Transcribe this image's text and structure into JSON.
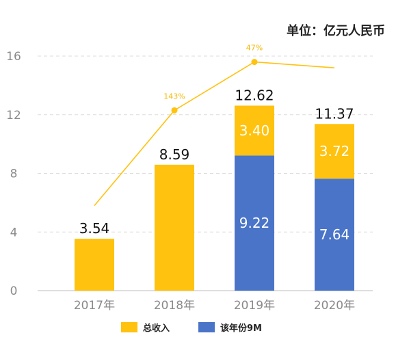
{
  "chart_data": {
    "type": "bar",
    "unit_label": "单位：亿元人民币",
    "categories": [
      "2017年",
      "2018年",
      "2019年",
      "2020年"
    ],
    "ylim": [
      0,
      16
    ],
    "yticks": [
      "0",
      "4",
      "8",
      "12",
      "16"
    ],
    "grid": true,
    "legend_position": "bottom",
    "series": [
      {
        "name": "总收入",
        "color": "#FFC20E",
        "values": [
          3.54,
          8.59,
          12.62,
          11.37
        ]
      },
      {
        "name": "该年份9M",
        "color": "#4A74C8",
        "values": [
          null,
          null,
          9.22,
          7.64
        ]
      }
    ],
    "top_labels": [
      "3.54",
      "8.59",
      "12.62",
      "11.37"
    ],
    "stacked_remainder": {
      "values": [
        null,
        null,
        3.4,
        3.72
      ],
      "labels": [
        "",
        "",
        "3.40",
        "3.72"
      ]
    },
    "inner_blue_labels": [
      "",
      "",
      "9.22",
      "7.64"
    ],
    "growth_line": {
      "color": "#FFC20E",
      "points": [
        {
          "x": 0,
          "y": 5.8,
          "label": ""
        },
        {
          "x": 1,
          "y": 12.3,
          "label": "143%"
        },
        {
          "x": 2,
          "y": 15.6,
          "label": "47%"
        },
        {
          "x": 3,
          "y": 15.2,
          "label": ""
        }
      ]
    }
  }
}
